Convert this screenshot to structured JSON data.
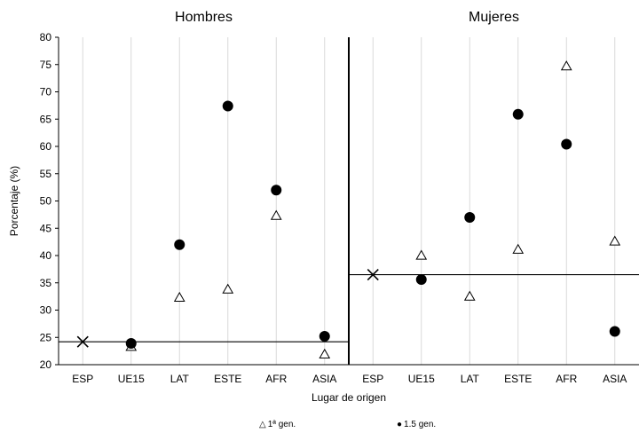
{
  "chart_data": {
    "type": "scatter",
    "panels": [
      {
        "title": "Hombres",
        "categories": [
          "ESP",
          "UE15",
          "LAT",
          "ESTE",
          "AFR",
          "ASIA"
        ],
        "reference": {
          "category": "ESP",
          "value": 24.2
        },
        "series": [
          {
            "name": "1ª gen.",
            "values": [
              null,
              23.3,
              32.3,
              33.8,
              47.3,
              21.9
            ]
          },
          {
            "name": "1.5 gen.",
            "values": [
              null,
              23.9,
              42.0,
              67.4,
              52.0,
              25.2
            ]
          }
        ]
      },
      {
        "title": "Mujeres",
        "categories": [
          "ESP",
          "UE15",
          "LAT",
          "ESTE",
          "AFR",
          "ASIA"
        ],
        "reference": {
          "category": "ESP",
          "value": 36.5
        },
        "series": [
          {
            "name": "1ª gen.",
            "values": [
              null,
              40.0,
              32.5,
              41.1,
              74.7,
              42.6
            ]
          },
          {
            "name": "1.5 gen.",
            "values": [
              null,
              35.6,
              47.0,
              65.9,
              60.4,
              26.1
            ]
          }
        ]
      }
    ],
    "xlabel": "Lugar de origen",
    "ylabel": "Porcentaje (%)",
    "ylim": [
      20,
      80
    ],
    "yticks": [
      "20",
      "25",
      "30",
      "35",
      "40",
      "45",
      "50",
      "55",
      "60",
      "65",
      "70",
      "75",
      "80"
    ],
    "grid": "vertical",
    "legend": "bottom",
    "colors": {
      "axis": "#000000",
      "grid": "#d9d9d9",
      "marker": "#000000"
    }
  }
}
